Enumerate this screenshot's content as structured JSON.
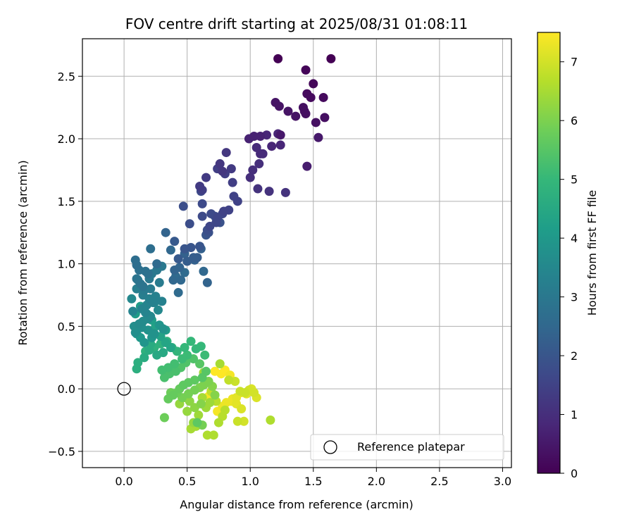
{
  "chart_data": {
    "type": "scatter",
    "title": "FOV centre drift starting at 2025/08/31 01:08:11",
    "xlabel": "Angular distance from reference (arcmin)",
    "ylabel": "Rotation from reference (arcmin)",
    "xlim": [
      -0.33,
      3.07
    ],
    "ylim": [
      -0.63,
      2.8
    ],
    "xticks": [
      "0.0",
      "0.5",
      "1.0",
      "1.5",
      "2.0",
      "2.5",
      "3.0"
    ],
    "xtick_values": [
      0,
      0.5,
      1,
      1.5,
      2,
      2.5,
      3
    ],
    "yticks": [
      "−0.5",
      "0.0",
      "0.5",
      "1.0",
      "1.5",
      "2.0",
      "2.5"
    ],
    "ytick_values": [
      -0.5,
      0,
      0.5,
      1,
      1.5,
      2,
      2.5
    ],
    "grid": true,
    "colorbar": {
      "label": "Hours from first FF file",
      "range": [
        0,
        7.5
      ],
      "ticks": [
        "0",
        "1",
        "2",
        "3",
        "4",
        "5",
        "6",
        "7"
      ],
      "tick_values": [
        0,
        1,
        2,
        3,
        4,
        5,
        6,
        7
      ],
      "colormap": "viridis",
      "stops": [
        "#440154",
        "#482878",
        "#3e4989",
        "#31688e",
        "#26828e",
        "#1f9e89",
        "#35b779",
        "#6ece58",
        "#b5de2b",
        "#fde725"
      ]
    },
    "legend": {
      "label": "Reference platepar",
      "placement": "lower right"
    },
    "reference_point": {
      "x": 0.0,
      "y": 0.0
    },
    "series": [
      {
        "x": [
          1.22,
          1.64,
          1.44,
          1.5,
          1.58,
          1.45,
          1.48,
          1.42,
          1.43,
          1.44,
          1.2,
          1.23,
          1.3,
          1.36,
          1.52,
          1.59,
          1.24,
          1.54,
          1.45,
          0.99,
          1.03,
          1.08,
          1.13,
          1.22,
          1.17,
          1.24,
          1.05,
          1.08,
          1.1,
          1.07,
          1.02,
          1.0,
          1.06,
          1.15,
          1.28
        ],
        "y": [
          2.64,
          2.64,
          2.55,
          2.44,
          2.33,
          2.36,
          2.33,
          2.25,
          2.22,
          2.2,
          2.29,
          2.26,
          2.22,
          2.18,
          2.13,
          2.17,
          2.03,
          2.01,
          1.78,
          2.0,
          2.02,
          2.02,
          2.03,
          2.04,
          1.94,
          1.95,
          1.93,
          1.88,
          1.88,
          1.8,
          1.75,
          1.69,
          1.6,
          1.58,
          1.57
        ],
        "hours": [
          0.0,
          0.0,
          0.1,
          0.1,
          0.2,
          0.2,
          0.2,
          0.3,
          0.3,
          0.3,
          0.4,
          0.4,
          0.4,
          0.4,
          0.3,
          0.3,
          0.5,
          0.5,
          0.6,
          0.7,
          0.7,
          0.7,
          0.8,
          0.8,
          0.8,
          0.8,
          0.9,
          0.9,
          0.9,
          1.0,
          1.0,
          1.0,
          1.1,
          1.1,
          1.1
        ]
      },
      {
        "x": [
          0.81,
          0.76,
          0.78,
          0.85,
          0.65,
          0.6,
          0.62,
          0.74,
          0.8,
          0.86,
          0.87,
          0.9,
          0.83,
          0.79,
          0.78,
          0.74,
          0.73,
          0.68,
          0.62,
          0.69,
          0.62,
          0.61,
          0.52,
          0.47,
          0.72,
          0.66,
          0.67,
          0.76,
          0.65,
          0.6,
          0.53,
          0.48,
          0.4,
          0.43,
          0.55,
          0.58,
          0.5,
          0.61,
          0.56,
          0.48,
          0.44,
          0.4,
          0.33,
          0.37,
          0.39,
          0.45,
          0.43,
          0.48,
          0.41,
          0.63,
          0.66
        ],
        "y": [
          1.89,
          1.8,
          1.74,
          1.76,
          1.69,
          1.62,
          1.59,
          1.76,
          1.72,
          1.65,
          1.54,
          1.5,
          1.43,
          1.42,
          1.4,
          1.37,
          1.33,
          1.3,
          1.38,
          1.4,
          1.48,
          1.58,
          1.32,
          1.46,
          1.38,
          1.27,
          1.25,
          1.33,
          1.23,
          1.14,
          1.13,
          1.12,
          1.18,
          1.04,
          1.05,
          1.05,
          1.02,
          1.12,
          1.03,
          1.08,
          0.97,
          0.95,
          1.25,
          1.11,
          0.87,
          0.87,
          0.77,
          0.93,
          0.9,
          0.94,
          0.85
        ],
        "hours": [
          1.2,
          1.2,
          1.2,
          1.3,
          1.3,
          1.3,
          1.4,
          1.4,
          1.4,
          1.4,
          1.5,
          1.5,
          1.5,
          1.5,
          1.6,
          1.6,
          1.6,
          1.6,
          1.7,
          1.7,
          1.7,
          1.7,
          1.8,
          1.8,
          1.8,
          1.8,
          1.9,
          1.9,
          2.0,
          2.0,
          2.0,
          2.0,
          2.1,
          2.1,
          2.2,
          2.2,
          2.2,
          2.3,
          2.3,
          2.3,
          2.4,
          2.4,
          2.4,
          2.5,
          2.5,
          2.5,
          2.6,
          2.6,
          2.6,
          2.5,
          2.4
        ]
      },
      {
        "x": [
          0.09,
          0.1,
          0.12,
          0.17,
          0.19,
          0.1,
          0.13,
          0.15,
          0.2,
          0.22,
          0.26,
          0.3,
          0.28,
          0.21,
          0.16,
          0.1,
          0.11,
          0.15,
          0.2,
          0.23,
          0.25,
          0.3,
          0.18,
          0.14,
          0.17,
          0.21,
          0.27,
          0.24,
          0.19,
          0.15,
          0.12,
          0.08,
          0.09,
          0.14,
          0.19,
          0.24,
          0.31,
          0.28,
          0.22,
          0.16,
          0.13,
          0.1,
          0.07,
          0.06,
          0.09,
          0.13,
          0.18,
          0.22,
          0.25,
          0.29,
          0.33,
          0.37,
          0.31,
          0.26,
          0.2,
          0.16,
          0.11,
          0.26,
          0.21,
          0.33,
          0.21
        ],
        "y": [
          1.03,
          0.99,
          0.95,
          0.94,
          0.92,
          0.88,
          0.84,
          0.82,
          0.88,
          0.92,
          0.95,
          0.98,
          0.85,
          0.8,
          0.79,
          0.8,
          0.87,
          0.75,
          0.72,
          0.69,
          0.74,
          0.7,
          0.67,
          0.64,
          0.61,
          0.58,
          0.63,
          0.69,
          0.56,
          0.54,
          0.52,
          0.5,
          0.45,
          0.49,
          0.47,
          0.44,
          0.48,
          0.51,
          0.41,
          0.37,
          0.41,
          0.44,
          0.62,
          0.72,
          0.6,
          0.66,
          0.6,
          0.55,
          0.5,
          0.42,
          0.37,
          0.33,
          0.29,
          0.27,
          0.31,
          0.25,
          0.21,
          1.0,
          1.12,
          0.47,
          0.36
        ],
        "hours": [
          2.7,
          2.7,
          2.8,
          2.8,
          2.8,
          2.9,
          2.9,
          2.9,
          3.0,
          3.0,
          3.0,
          3.0,
          3.1,
          3.1,
          3.1,
          3.2,
          3.2,
          3.2,
          3.3,
          3.3,
          3.3,
          3.3,
          3.4,
          3.4,
          3.4,
          3.5,
          3.5,
          3.5,
          3.6,
          3.6,
          3.6,
          3.7,
          3.7,
          3.7,
          3.8,
          3.8,
          3.8,
          3.9,
          3.9,
          3.9,
          4.0,
          4.0,
          3.4,
          3.5,
          4.1,
          4.1,
          4.2,
          4.2,
          4.3,
          4.3,
          4.4,
          4.4,
          4.5,
          4.5,
          4.6,
          4.6,
          4.7,
          2.6,
          2.7,
          4.1,
          4.6
        ]
      },
      {
        "x": [
          0.17,
          0.24,
          0.29,
          0.34,
          0.38,
          0.42,
          0.48,
          0.53,
          0.57,
          0.61,
          0.64,
          0.5,
          0.46,
          0.4,
          0.35,
          0.3,
          0.32,
          0.36,
          0.41,
          0.45,
          0.49,
          0.55,
          0.6,
          0.65,
          0.62,
          0.56,
          0.51,
          0.47,
          0.44,
          0.39,
          0.35,
          0.32,
          0.37,
          0.42,
          0.46,
          0.51,
          0.56,
          0.6,
          0.63,
          0.67,
          0.7,
          0.72,
          0.61,
          0.56,
          0.52,
          0.48,
          0.44,
          0.5,
          0.55,
          0.59,
          0.65,
          0.68,
          0.62,
          0.57,
          0.53,
          0.66,
          0.71,
          0.75,
          0.78,
          0.8,
          0.73,
          0.69,
          0.58,
          0.62,
          0.1
        ],
        "y": [
          0.3,
          0.33,
          0.36,
          0.38,
          0.33,
          0.3,
          0.33,
          0.38,
          0.32,
          0.34,
          0.27,
          0.27,
          0.24,
          0.2,
          0.17,
          0.15,
          0.09,
          0.12,
          0.14,
          0.17,
          0.21,
          0.24,
          0.2,
          0.14,
          0.09,
          0.07,
          0.05,
          0.03,
          0.0,
          -0.05,
          -0.08,
          -0.23,
          -0.03,
          -0.03,
          -0.07,
          -0.04,
          -0.01,
          0.01,
          0.03,
          0.06,
          0.02,
          -0.05,
          -0.12,
          -0.15,
          -0.1,
          -0.07,
          -0.12,
          -0.18,
          -0.27,
          -0.21,
          -0.15,
          -0.11,
          -0.07,
          -0.3,
          -0.32,
          -0.37,
          -0.37,
          -0.27,
          -0.22,
          -0.17,
          -0.1,
          -0.02,
          -0.27,
          -0.29,
          0.16
        ],
        "hours": [
          4.8,
          4.8,
          4.8,
          4.9,
          4.9,
          4.9,
          5.0,
          5.0,
          5.0,
          5.0,
          5.1,
          5.1,
          5.1,
          5.2,
          5.2,
          5.2,
          5.3,
          5.3,
          5.3,
          5.4,
          5.4,
          5.4,
          5.5,
          5.5,
          5.5,
          5.6,
          5.6,
          5.6,
          5.7,
          5.7,
          5.7,
          5.8,
          5.8,
          5.8,
          5.9,
          5.9,
          5.9,
          6.0,
          6.0,
          6.0,
          6.1,
          6.1,
          6.1,
          6.2,
          6.2,
          6.2,
          6.3,
          6.3,
          6.3,
          6.4,
          6.4,
          6.4,
          6.5,
          6.5,
          6.5,
          6.6,
          6.6,
          6.6,
          6.7,
          6.7,
          6.7,
          6.8,
          5.6,
          5.9,
          4.7
        ]
      },
      {
        "x": [
          0.83,
          0.88,
          0.92,
          0.96,
          0.99,
          1.03,
          1.05,
          1.01,
          0.97,
          0.93,
          0.89,
          0.85,
          0.81,
          0.78,
          0.74,
          0.7,
          0.67,
          0.72,
          0.77,
          0.8,
          0.84,
          0.86,
          0.89,
          0.93,
          0.95,
          0.9,
          1.16,
          0.76,
          0.63
        ],
        "y": [
          0.07,
          0.06,
          -0.02,
          -0.03,
          -0.01,
          -0.03,
          -0.07,
          0.0,
          -0.04,
          -0.03,
          -0.07,
          -0.1,
          -0.11,
          -0.14,
          -0.18,
          -0.04,
          -0.06,
          0.14,
          0.12,
          0.15,
          0.11,
          -0.08,
          -0.12,
          -0.16,
          -0.26,
          -0.26,
          -0.25,
          0.2,
          0.13
        ],
        "hours": [
          6.8,
          6.9,
          6.9,
          6.9,
          7.0,
          7.0,
          7.1,
          7.1,
          7.2,
          7.2,
          7.2,
          7.3,
          7.3,
          7.3,
          7.4,
          7.4,
          7.4,
          7.5,
          7.5,
          7.5,
          7.4,
          7.3,
          7.2,
          7.1,
          7.0,
          6.9,
          6.6,
          6.5,
          6.4
        ]
      }
    ]
  }
}
